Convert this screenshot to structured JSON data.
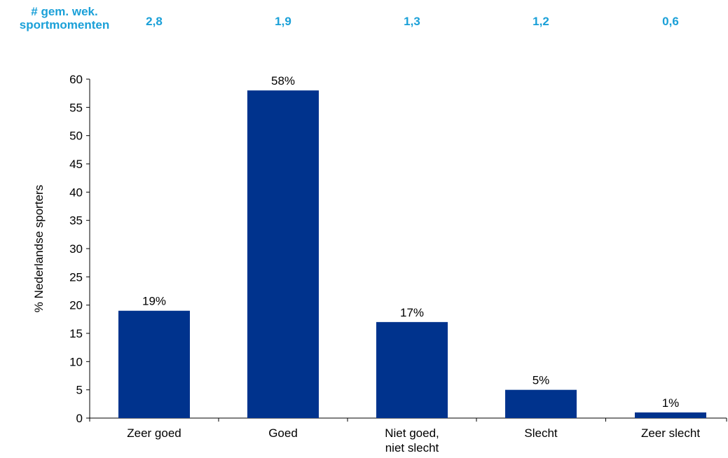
{
  "header": {
    "label_line1": "# gem. wek.",
    "label_line2": "sportmomenten",
    "values": [
      "2,8",
      "1,9",
      "1,3",
      "1,2",
      "0,6"
    ]
  },
  "colors": {
    "bar": "#00338d",
    "header_text": "#1aa0d8",
    "text": "#000000",
    "axis": "#000000"
  },
  "chart_data": {
    "type": "bar",
    "ylabel": "% Nederlandse sporters",
    "ylim": [
      0,
      60
    ],
    "yticks": [
      0,
      5,
      10,
      15,
      20,
      25,
      30,
      35,
      40,
      45,
      50,
      55,
      60
    ],
    "grid": false,
    "categories": [
      [
        "Zeer goed"
      ],
      [
        "Goed"
      ],
      [
        "Niet goed,",
        "niet slecht"
      ],
      [
        "Slecht"
      ],
      [
        "Zeer slecht"
      ]
    ],
    "values": [
      19,
      58,
      17,
      5,
      1
    ],
    "data_labels": [
      "19%",
      "58%",
      "17%",
      "5%",
      "1%"
    ]
  }
}
